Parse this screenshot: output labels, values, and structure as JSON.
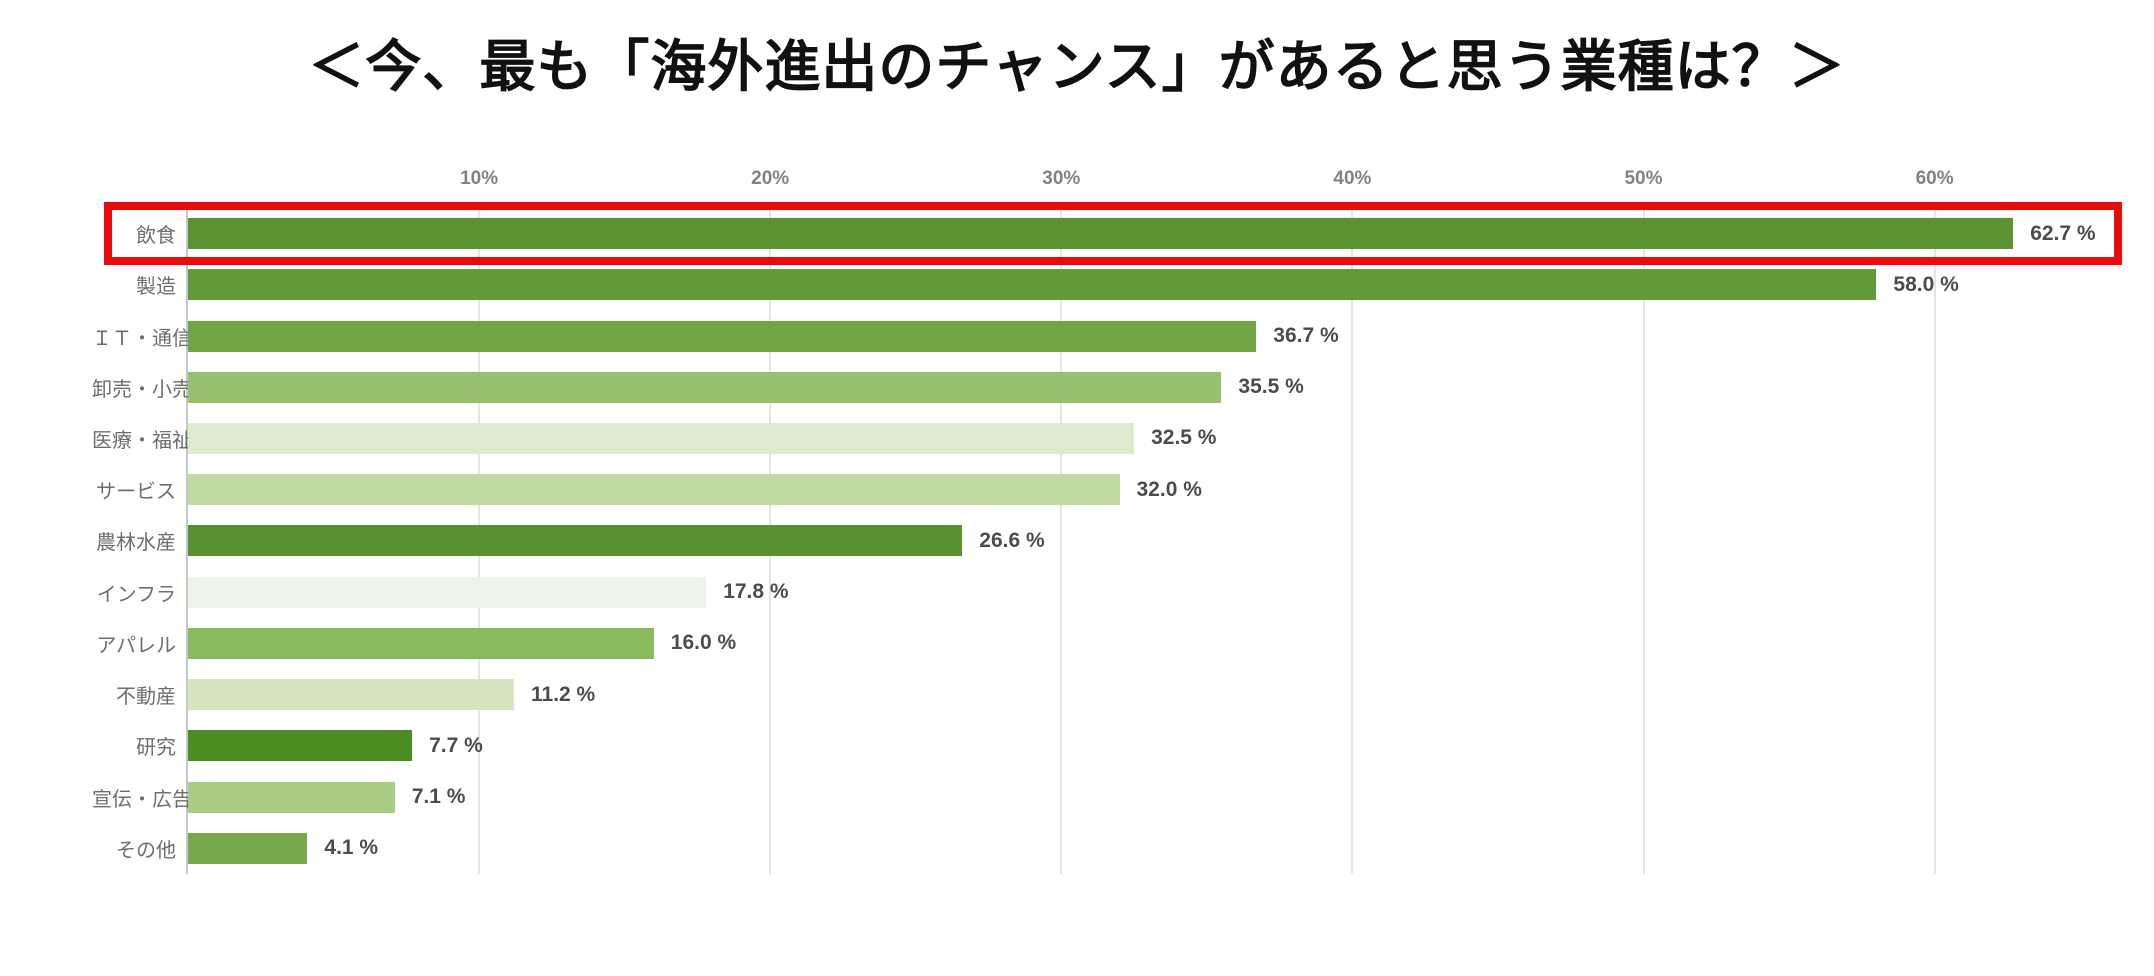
{
  "title": "＜今、最も「海外進出のチャンス」があると思う業種は？＞",
  "chart_data": {
    "type": "bar",
    "orientation": "horizontal",
    "title": "＜今、最も「海外進出のチャンス」があると思う業種は？＞",
    "xlabel": "",
    "ylabel": "",
    "value_unit": "%",
    "xlim": [
      0,
      66
    ],
    "x_ticks": [
      "10%",
      "20%",
      "30%",
      "40%",
      "50%",
      "60%"
    ],
    "x_tick_values": [
      10,
      20,
      30,
      40,
      50,
      60
    ],
    "grid": true,
    "legend": "none",
    "categories": [
      "飲食",
      "製造",
      "ＩＴ・通信",
      "卸売・小売",
      "医療・福祉",
      "サービス",
      "農林水産",
      "インフラ",
      "アパレル",
      "不動産",
      "研究",
      "宣伝・広告",
      "その他"
    ],
    "values": [
      62.7,
      58.0,
      36.7,
      35.5,
      32.5,
      32.0,
      26.6,
      17.8,
      16.0,
      11.2,
      7.7,
      7.1,
      4.1
    ],
    "value_labels": [
      "62.7 %",
      "58.0 %",
      "36.7 %",
      "35.5 %",
      "32.5 %",
      "32.0 %",
      "26.6 %",
      "17.8 %",
      "16.0 %",
      "11.2 %",
      "7.7 %",
      "7.1 %",
      "4.1 %"
    ],
    "bar_colors": [
      "#5b9331",
      "#639a38",
      "#6fa542",
      "#97c16e",
      "#dcebce",
      "#c2dba3",
      "#579130",
      "#edf3e6",
      "#8aba5e",
      "#d4e5bf",
      "#4b8c23",
      "#a9cd83",
      "#77a94a"
    ],
    "highlight": {
      "category": "飲食",
      "index": 0,
      "box_color": "#ea0b0b"
    }
  },
  "colors": {
    "background": "#ffffff",
    "grid_line": "#e2e6e8",
    "axis_line": "#c3c8cc",
    "tick_label": "#828282",
    "category_label": "#6e6e6e",
    "value_label": "#4c4c4c",
    "title_text": "#111111",
    "highlight_box": "#ea0b0b"
  }
}
